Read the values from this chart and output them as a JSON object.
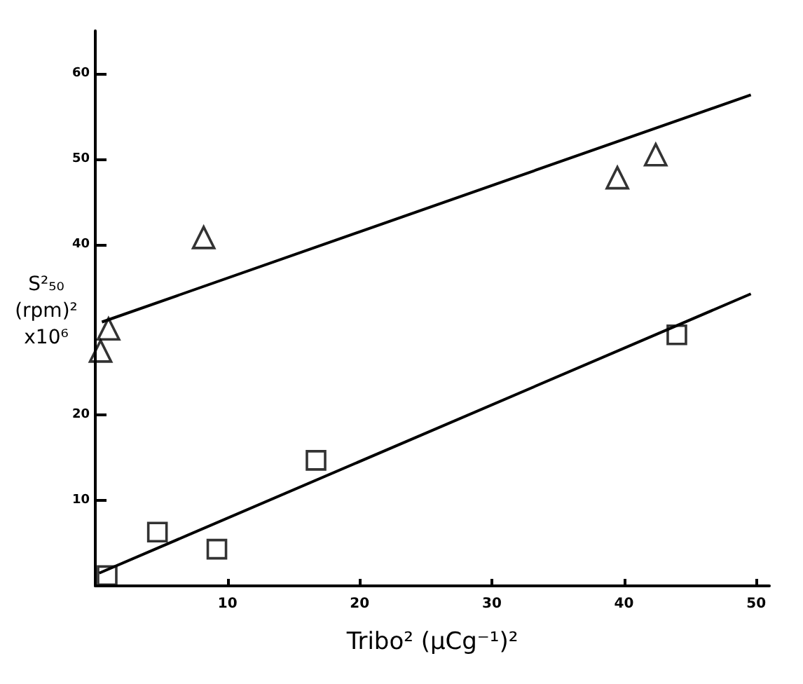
{
  "chart_data": {
    "type": "scatter",
    "xlabel": "Tribo²  (μCg⁻¹)²",
    "ylabel": "S²₅₀\n(rpm)²\nx10⁶",
    "xlim": [
      0,
      51
    ],
    "ylim": [
      0,
      65
    ],
    "xticks": [
      10,
      20,
      30,
      40,
      50
    ],
    "yticks": [
      10,
      20,
      40,
      50,
      60
    ],
    "grid": false,
    "series": [
      {
        "marker": "triangle",
        "color": "#000000",
        "x": [
          0.4,
          1.0,
          8.2,
          39.5,
          42.4
        ],
        "values": [
          27.5,
          30.1,
          40.8,
          47.8,
          50.5
        ]
      },
      {
        "marker": "square",
        "color": "#000000",
        "x": [
          0.9,
          4.7,
          9.2,
          16.7,
          44.0
        ],
        "values": [
          1.2,
          6.3,
          4.3,
          14.7,
          29.4
        ]
      },
      {
        "type": "line",
        "marker": "none",
        "line_style": "solid",
        "color": "#000000",
        "x": [
          0.5,
          49.6
        ],
        "values": [
          30.9,
          57.5
        ]
      },
      {
        "type": "line",
        "marker": "none",
        "line_style": "solid",
        "color": "#000000",
        "x": [
          0.3,
          49.6
        ],
        "values": [
          1.5,
          34.2
        ]
      }
    ]
  }
}
